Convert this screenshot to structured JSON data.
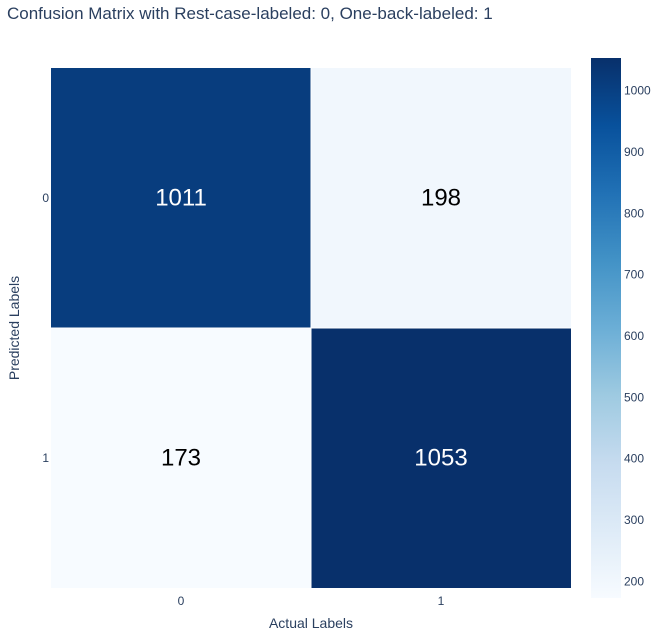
{
  "chart_data": {
    "type": "heatmap",
    "title": "Confusion Matrix with Rest-case-labeled: 0, One-back-labeled: 1",
    "xlabel": "Actual Labels",
    "ylabel": "Predicted Labels",
    "x_categories": [
      "0",
      "1"
    ],
    "y_categories": [
      "0",
      "1"
    ],
    "z": [
      [
        1011,
        198
      ],
      [
        173,
        1053
      ]
    ],
    "colorscale": "Blues",
    "zmin": 173,
    "zmax": 1053,
    "colorbar_ticks": [
      200,
      300,
      400,
      500,
      600,
      700,
      800,
      900,
      1000
    ],
    "grid": false,
    "colorbar_position": "right"
  }
}
